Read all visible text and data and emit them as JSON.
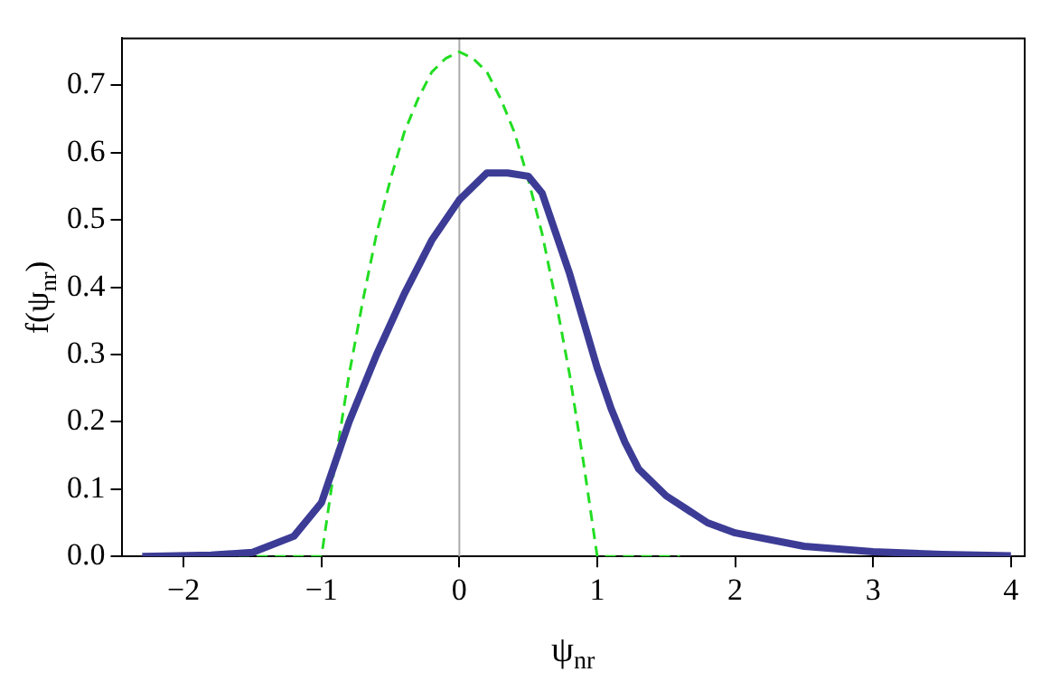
{
  "chart_data": {
    "type": "line",
    "xlabel": "ψ$_{nr}$",
    "ylabel": "f(ψ$_{nr}$)",
    "xlim": [
      -2.45,
      4.1
    ],
    "ylim": [
      0,
      0.77
    ],
    "xticks": [
      -2,
      -1,
      0,
      1,
      2,
      3,
      4
    ],
    "yticks": [
      {
        "value": 0,
        "label": "0.0"
      },
      0.1,
      0.2,
      0.3,
      0.4,
      0.5,
      0.6,
      0.7
    ],
    "grid": false,
    "legend": false,
    "marker": "none",
    "ref_lines": [
      {
        "axis": "x",
        "value": 0,
        "color": "#aaaaaa"
      }
    ],
    "series": [
      {
        "color": "#3c3c96",
        "line_style": "solid",
        "x": [
          -2.3,
          -1.8,
          -1.5,
          -1.2,
          -1.0,
          -0.9,
          -0.8,
          -0.6,
          -0.4,
          -0.2,
          0,
          0.2,
          0.35,
          0.5,
          0.6,
          0.7,
          0.8,
          0.9,
          1.0,
          1.1,
          1.2,
          1.3,
          1.5,
          1.8,
          2.0,
          2.5,
          3.0,
          3.5,
          4.0
        ],
        "values": [
          0,
          0.002,
          0.006,
          0.03,
          0.08,
          0.14,
          0.2,
          0.3,
          0.39,
          0.47,
          0.53,
          0.57,
          0.57,
          0.565,
          0.54,
          0.48,
          0.42,
          0.35,
          0.28,
          0.22,
          0.17,
          0.13,
          0.09,
          0.05,
          0.035,
          0.015,
          0.007,
          0.003,
          0.001
        ]
      },
      {
        "color": "#22dd22",
        "line_style": "dashed",
        "x": [
          -1.6,
          -1.0,
          -0.9,
          -0.8,
          -0.7,
          -0.6,
          -0.5,
          -0.4,
          -0.3,
          -0.2,
          -0.1,
          0,
          0.1,
          0.2,
          0.3,
          0.4,
          0.5,
          0.6,
          0.7,
          0.8,
          0.9,
          1.0,
          1.6
        ],
        "values": [
          0,
          0,
          0.14,
          0.27,
          0.38,
          0.48,
          0.56,
          0.63,
          0.68,
          0.72,
          0.74,
          0.75,
          0.74,
          0.72,
          0.68,
          0.63,
          0.56,
          0.48,
          0.38,
          0.27,
          0.14,
          0,
          0
        ]
      }
    ]
  }
}
